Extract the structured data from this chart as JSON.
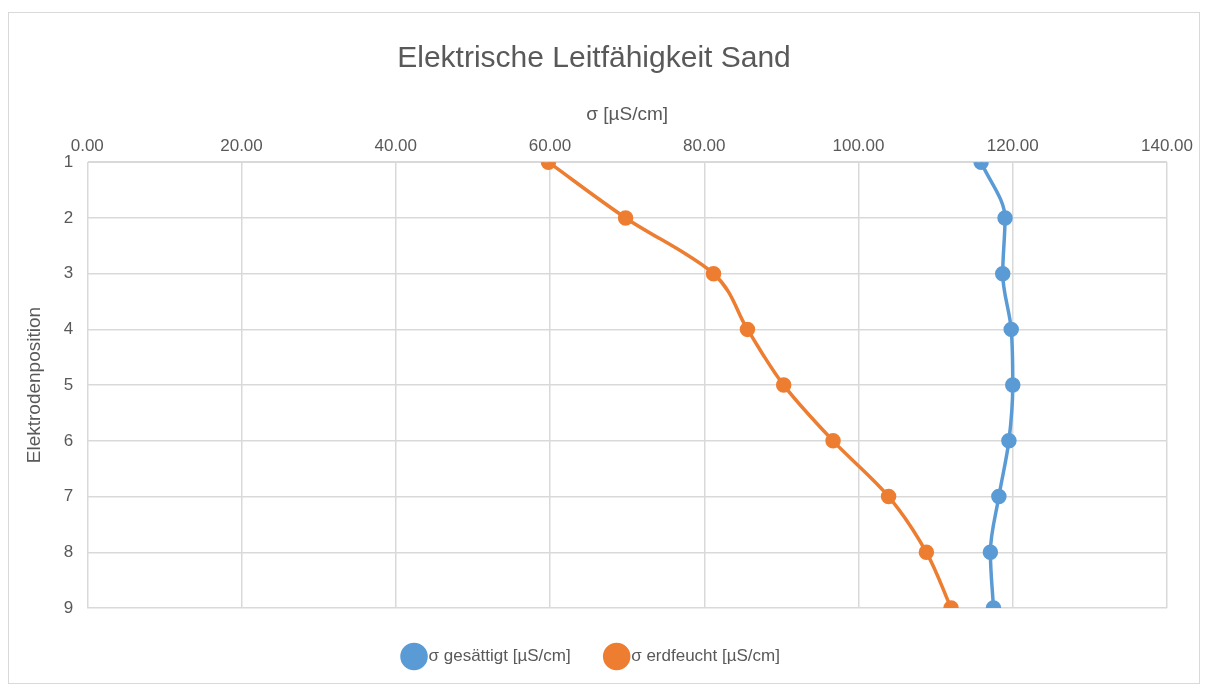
{
  "chart_data": {
    "type": "line",
    "title": "Elektrische Leitfähigkeit Sand",
    "xlabel": "σ [µS/cm]",
    "ylabel": "Elektrodenposition",
    "xlim": [
      0,
      140
    ],
    "xticks": [
      {
        "value": 0,
        "label": "0.00"
      },
      {
        "value": 20,
        "label": "20.00"
      },
      {
        "value": 40,
        "label": "40.00"
      },
      {
        "value": 60,
        "label": "60.00"
      },
      {
        "value": 80,
        "label": "80.00"
      },
      {
        "value": 100,
        "label": "100.00"
      },
      {
        "value": 120,
        "label": "120.00"
      },
      {
        "value": 140,
        "label": "140.00"
      }
    ],
    "ylim": [
      9,
      1
    ],
    "yticks": [
      1,
      2,
      3,
      4,
      5,
      6,
      7,
      8,
      9
    ],
    "series": [
      {
        "name": "σ gesättigt [µS/cm]",
        "color": "#5b9bd5",
        "x": [
          115.9,
          119.0,
          118.7,
          119.8,
          120.0,
          119.5,
          118.2,
          117.1,
          117.5
        ],
        "values": [
          1,
          2,
          3,
          4,
          5,
          6,
          7,
          8,
          9
        ]
      },
      {
        "name": "σ erdfeucht [µS/cm]",
        "color": "#ed7d31",
        "x": [
          59.8,
          69.8,
          81.2,
          85.6,
          90.3,
          96.7,
          103.9,
          108.8,
          112.0
        ],
        "values": [
          1,
          2,
          3,
          4,
          5,
          6,
          7,
          8,
          9
        ]
      }
    ],
    "grid": true,
    "legend": "bottom",
    "marker": "circle"
  }
}
